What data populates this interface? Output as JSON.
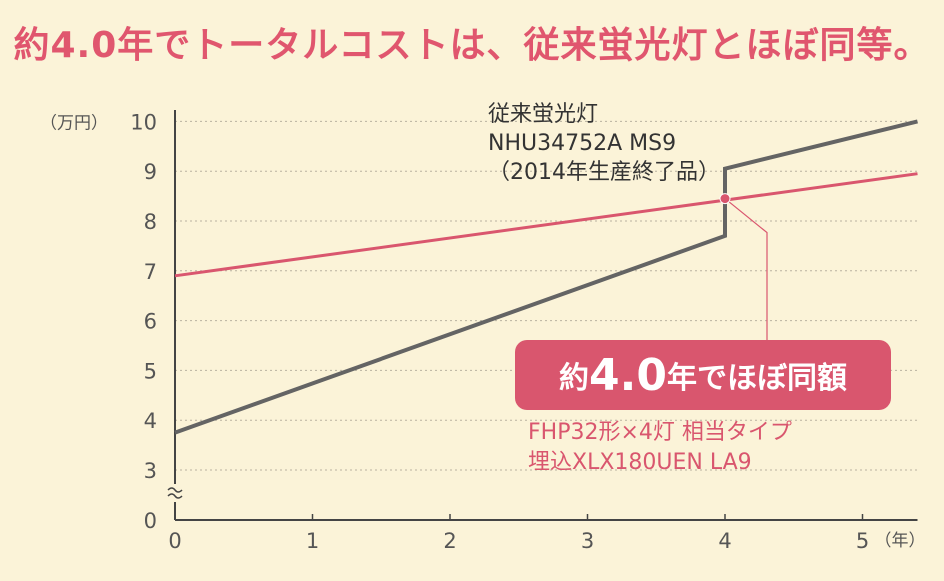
{
  "title": "約4.0年でトータルコストは、従来蛍光灯とほぼ同等。",
  "callout": {
    "pre": "約",
    "num": "4.0",
    "post": "年でほぼ同額"
  },
  "annotation_old": {
    "line1": "従来蛍光灯",
    "line2": "NHU34752A  MS9",
    "line3": "（2014年生産終了品）"
  },
  "annotation_new": {
    "line1": "FHP32形×4灯  相当タイプ",
    "line2": "埋込XLX180UEN  LA9"
  },
  "colors": {
    "background": "#fbf3d8",
    "accent": "#d9566e",
    "old_line": "#646464",
    "axis": "#444444"
  },
  "chart_data": {
    "type": "line",
    "x_unit_label": "（年）",
    "y_unit_label": "（万円）",
    "x_ticks": [
      0,
      1,
      2,
      3,
      4,
      5
    ],
    "y_ticks": [
      0,
      3,
      4,
      5,
      6,
      7,
      8,
      9,
      10
    ],
    "xlim": [
      0,
      5.4
    ],
    "ylim": [
      0,
      10
    ],
    "y_axis_break": "between 0 and 3",
    "grid": "horizontal dotted",
    "series": [
      {
        "name": "",
        "color": "#646464",
        "points": [
          [
            0,
            3.75
          ],
          [
            4,
            7.7
          ],
          [
            4,
            9.05
          ],
          [
            5.4,
            10.0
          ]
        ]
      },
      {
        "name": "",
        "color": "#d9566e",
        "points": [
          [
            0,
            6.9
          ],
          [
            5.4,
            8.95
          ]
        ]
      }
    ],
    "crossover": {
      "x": 4.0,
      "y": 8.45
    }
  }
}
